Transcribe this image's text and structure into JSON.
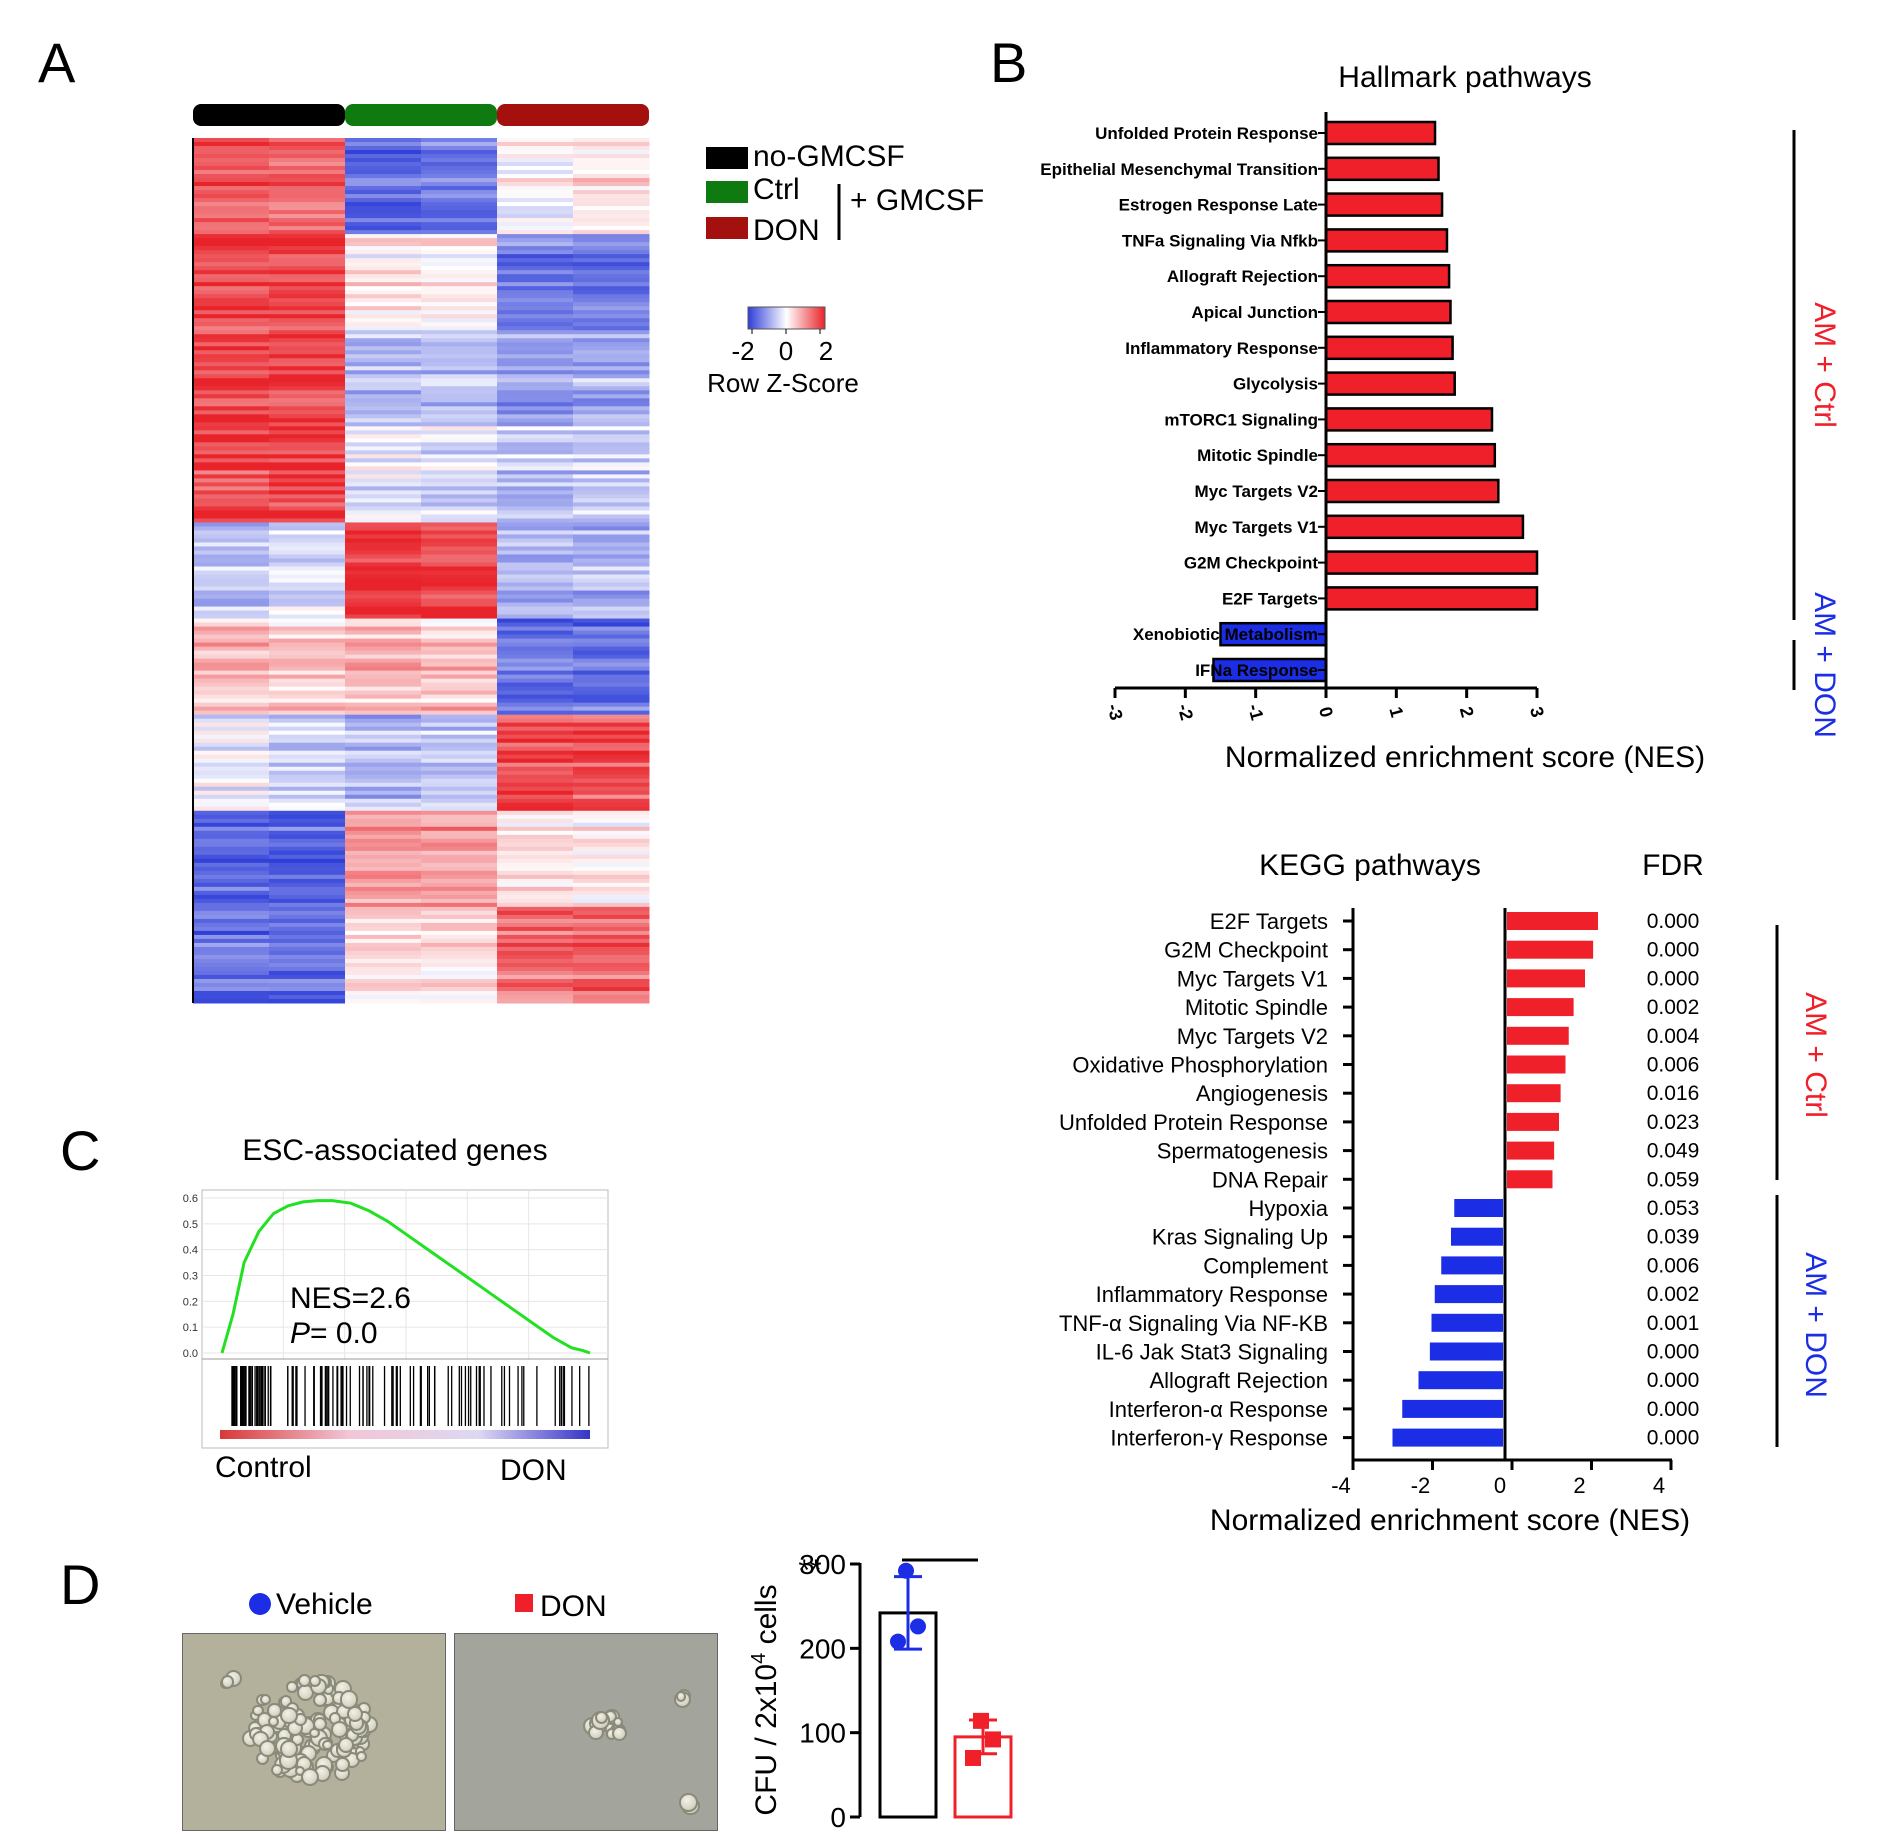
{
  "panels": {
    "A": "A",
    "B": "B",
    "C": "C",
    "D": "D"
  },
  "heatmap": {
    "legend": [
      {
        "label": "no-GMCSF",
        "color": "#000000"
      },
      {
        "label": "Ctrl",
        "color": "#0f7a0f"
      },
      {
        "label": "DON",
        "color": "#a3100e"
      }
    ],
    "bracket_label": "+ GMCSF",
    "scale_ticks": [
      "-2",
      "0",
      "2"
    ],
    "scale_title": "Row Z-Score",
    "colors": {
      "low": "#2f3fd8",
      "mid": "#ffffff",
      "high": "#e8232a"
    },
    "blocks": [
      [
        1.6,
        1.5,
        -1.4,
        -1.3,
        0.1,
        0.4
      ],
      [
        1.7,
        1.7,
        0.2,
        0.1,
        -1.3,
        -1.4
      ],
      [
        1.8,
        1.8,
        -0.6,
        -0.5,
        -0.9,
        -0.8
      ],
      [
        1.7,
        1.8,
        -0.2,
        -0.3,
        -0.6,
        -0.5
      ],
      [
        -0.7,
        -0.4,
        1.8,
        1.7,
        -0.8,
        -0.8
      ],
      [
        0.6,
        0.5,
        0.6,
        0.5,
        -1.5,
        -1.5
      ],
      [
        -0.2,
        -0.4,
        -0.7,
        -0.6,
        1.7,
        1.6
      ],
      [
        -1.5,
        -1.6,
        1.0,
        0.9,
        0.4,
        0.3
      ],
      [
        -1.4,
        -1.5,
        0.4,
        0.3,
        1.3,
        1.4
      ]
    ]
  },
  "hallmark": {
    "title": "Hallmark pathways",
    "xlabel": "Normalized enrichment score (NES)",
    "xticks": [
      "-3",
      "-2",
      "-1",
      "0",
      "1",
      "2",
      "3"
    ],
    "xlim": [
      -3,
      3
    ],
    "group_up": "AM + Ctrl",
    "group_down": "AM + DON",
    "color_up": "#f0202a",
    "color_down": "#1b2ee6"
  },
  "kegg": {
    "title": "KEGG pathways",
    "fdr_title": "FDR",
    "xlabel": "Normalized enrichment score (NES)",
    "xticks": [
      "-4",
      "-2",
      "0",
      "2",
      "4"
    ],
    "xlim": [
      -4,
      4
    ],
    "group_up": "AM + Ctrl",
    "group_down": "AM + DON"
  },
  "gsea": {
    "title": "ESC-associated genes",
    "yticks": [
      "0.6",
      "0.5",
      "0.4",
      "0.3",
      "0.2",
      "0.1",
      "0.0"
    ],
    "nes_text": "NES=2.6",
    "p_label": "P",
    "p_text": " = 0.0",
    "left_label": "Control",
    "right_label": "DON"
  },
  "colony": {
    "vehicle_label": "Vehicle",
    "don_label": "DON",
    "ylabel": "CFU / 2x10",
    "ylabel_sup": "4",
    "ylabel_tail": " cells",
    "yticks": [
      "300",
      "200",
      "100",
      "0"
    ],
    "sig": "**"
  },
  "chart_data": [
    {
      "type": "bar",
      "title": "Hallmark pathways",
      "xlabel": "Normalized enrichment score (NES)",
      "xlim": [
        -3,
        3
      ],
      "categories": [
        "Unfolded Protein Response",
        "Epithelial Mesenchymal Transition",
        "Estrogen Response Late",
        "TNFa Signaling Via Nfkb",
        "Allograft Rejection",
        "Apical Junction",
        "Inflammatory Response",
        "Glycolysis",
        "mTORC1 Signaling",
        "Mitotic Spindle",
        "Myc Targets V2",
        "Myc Targets V1",
        "G2M Checkpoint",
        "E2F Targets",
        "Xenobiotic Metabolism",
        "IFNa Response"
      ],
      "values": [
        1.55,
        1.6,
        1.65,
        1.72,
        1.75,
        1.77,
        1.8,
        1.83,
        2.36,
        2.4,
        2.45,
        2.8,
        3.0,
        3.0,
        -1.5,
        -1.6
      ]
    },
    {
      "type": "bar",
      "title": "KEGG pathways",
      "xlabel": "Normalized enrichment score (NES)",
      "xlim": [
        -4,
        4
      ],
      "categories": [
        "E2F Targets",
        "G2M Checkpoint",
        "Myc Targets V1",
        "Mitotic Spindle",
        "Myc Targets V2",
        "Oxidative  Phosphorylation",
        "Angiogenesis",
        "Unfolded Protein Response",
        "Spermatogenesis",
        "DNA Repair",
        "Hypoxia",
        "Kras Signaling Up",
        "Complement",
        "Inflammatory Response",
        "TNF-α Signaling Via NF-KB",
        "IL-6 Jak Stat3 Signaling",
        "Allograft Rejection",
        "Interferon-α Response",
        "Interferon-γ Response"
      ],
      "values": [
        2.8,
        2.65,
        2.4,
        2.05,
        1.9,
        1.8,
        1.65,
        1.6,
        1.45,
        1.4,
        -1.5,
        -1.6,
        -1.9,
        -2.1,
        -2.2,
        -2.25,
        -2.6,
        -3.1,
        -3.4
      ],
      "fdr": [
        "0.000",
        "0.000",
        "0.000",
        "0.002",
        "0.004",
        "0.006",
        "0.016",
        "0.023",
        "0.049",
        "0.059",
        "0.053",
        "0.039",
        "0.006",
        "0.002",
        "0.001",
        "0.000",
        "0.000",
        "0.000",
        "0.000"
      ]
    },
    {
      "type": "line",
      "title": "ESC-associated genes",
      "ylim": [
        0,
        0.6
      ],
      "x": [
        0,
        0.03,
        0.06,
        0.1,
        0.14,
        0.18,
        0.22,
        0.26,
        0.3,
        0.35,
        0.4,
        0.45,
        0.5,
        0.55,
        0.6,
        0.65,
        0.7,
        0.75,
        0.8,
        0.85,
        0.9,
        0.95,
        0.98,
        1.0
      ],
      "y": [
        0.0,
        0.15,
        0.35,
        0.47,
        0.54,
        0.57,
        0.585,
        0.59,
        0.59,
        0.58,
        0.55,
        0.51,
        0.46,
        0.41,
        0.36,
        0.31,
        0.26,
        0.21,
        0.16,
        0.11,
        0.06,
        0.02,
        0.01,
        0.0
      ]
    },
    {
      "type": "bar",
      "categories": [
        "Vehicle",
        "DON"
      ],
      "values": [
        242,
        95
      ],
      "error": [
        43,
        20
      ],
      "points": [
        [
          292,
          226,
          208
        ],
        [
          114,
          92,
          70
        ]
      ],
      "ylabel": "CFU / 2x10^4 cells",
      "ylim": [
        0,
        300
      ]
    }
  ]
}
